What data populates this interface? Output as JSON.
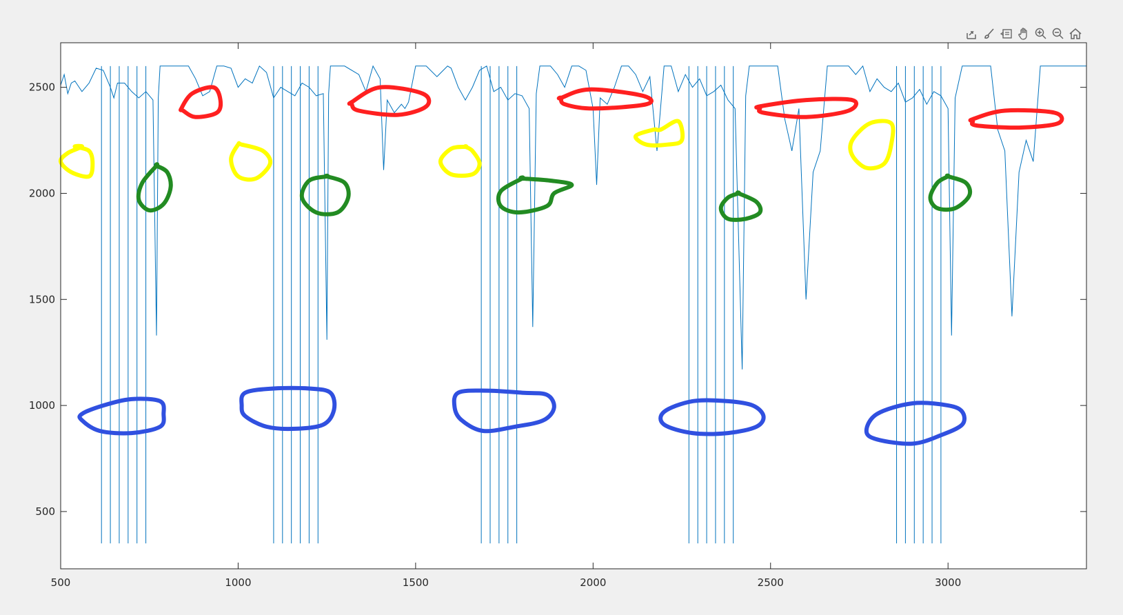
{
  "colors": {
    "line": "#0072bd",
    "red": "#ff2020",
    "yellow": "#ffff00",
    "green": "#228b22",
    "blue": "#3050e0",
    "axis": "#262626",
    "figure_bg": "#f0f0f0",
    "plot_bg": "#ffffff"
  },
  "toolbar": {
    "icons": [
      "export-icon",
      "brush-icon",
      "datatips-icon",
      "pan-icon",
      "zoom-in-icon",
      "zoom-out-icon",
      "home-icon"
    ]
  },
  "chart_data": {
    "type": "line",
    "title": "",
    "xlabel": "",
    "ylabel": "",
    "xlim": [
      500,
      3390
    ],
    "ylim": [
      230,
      2710
    ],
    "xticks": [
      500,
      1000,
      1500,
      2000,
      2500,
      3000
    ],
    "yticks": [
      500,
      1000,
      1500,
      2000,
      2500
    ],
    "xtick_labels": [
      "500",
      "1000",
      "1500",
      "2000",
      "2500",
      "3000"
    ],
    "ytick_labels": [
      "500",
      "1000",
      "1500",
      "2000",
      "2500"
    ],
    "grid": false,
    "legend": "none",
    "series": [
      {
        "x": [
          500,
          510,
          520,
          530,
          540,
          560,
          580,
          600,
          620,
          640,
          650,
          660,
          680,
          700,
          720,
          740,
          760,
          770,
          775,
          780,
          790,
          800,
          860,
          880,
          900,
          920,
          940,
          960,
          980,
          1000,
          1020,
          1040,
          1060,
          1080,
          1100,
          1120,
          1140,
          1160,
          1180,
          1200,
          1220,
          1240,
          1250,
          1255,
          1260,
          1270,
          1300,
          1340,
          1360,
          1380,
          1400,
          1410,
          1420,
          1440,
          1460,
          1470,
          1480,
          1500,
          1530,
          1560,
          1590,
          1600,
          1620,
          1640,
          1660,
          1680,
          1700,
          1720,
          1740,
          1760,
          1780,
          1800,
          1820,
          1830,
          1840,
          1850,
          1860,
          1870,
          1880,
          1900,
          1920,
          1940,
          1960,
          1980,
          2000,
          2010,
          2020,
          2040,
          2060,
          2080,
          2100,
          2120,
          2140,
          2160,
          2180,
          2200,
          2220,
          2240,
          2260,
          2280,
          2300,
          2320,
          2340,
          2360,
          2380,
          2400,
          2420,
          2430,
          2440,
          2450,
          2480,
          2520,
          2540,
          2560,
          2580,
          2600,
          2620,
          2640,
          2660,
          2680,
          2700,
          2720,
          2740,
          2760,
          2780,
          2800,
          2820,
          2840,
          2860,
          2880,
          2900,
          2920,
          2940,
          2960,
          2980,
          3000,
          3010,
          3020,
          3040,
          3060,
          3080,
          3100,
          3120,
          3140,
          3160,
          3180,
          3200,
          3220,
          3240,
          3260,
          3280,
          3300,
          3390
        ],
        "y": [
          2510,
          2560,
          2470,
          2520,
          2530,
          2480,
          2520,
          2590,
          2580,
          2500,
          2450,
          2520,
          2520,
          2480,
          2450,
          2480,
          2440,
          1330,
          2450,
          2600,
          2600,
          2600,
          2600,
          2540,
          2460,
          2480,
          2600,
          2600,
          2590,
          2500,
          2540,
          2520,
          2600,
          2570,
          2450,
          2500,
          2480,
          2460,
          2520,
          2500,
          2460,
          2470,
          1310,
          2470,
          2600,
          2600,
          2600,
          2560,
          2480,
          2600,
          2540,
          2110,
          2440,
          2380,
          2420,
          2400,
          2430,
          2600,
          2600,
          2550,
          2600,
          2590,
          2500,
          2440,
          2500,
          2580,
          2600,
          2480,
          2500,
          2440,
          2470,
          2460,
          2400,
          1370,
          2470,
          2600,
          2600,
          2600,
          2600,
          2560,
          2500,
          2600,
          2600,
          2580,
          2400,
          2040,
          2450,
          2420,
          2500,
          2600,
          2600,
          2560,
          2480,
          2550,
          2200,
          2600,
          2600,
          2480,
          2560,
          2500,
          2540,
          2460,
          2480,
          2510,
          2440,
          2400,
          1170,
          2460,
          2600,
          2600,
          2600,
          2600,
          2350,
          2200,
          2400,
          1500,
          2100,
          2200,
          2600,
          2600,
          2600,
          2600,
          2560,
          2600,
          2480,
          2540,
          2500,
          2480,
          2520,
          2430,
          2450,
          2490,
          2420,
          2480,
          2460,
          2400,
          1330,
          2450,
          2600,
          2600,
          2600,
          2600,
          2600,
          2300,
          2200,
          1420,
          2100,
          2250,
          2150,
          2600,
          2600,
          2600,
          2600
        ]
      }
    ],
    "spikes_to": 350,
    "spike_x": [
      615,
      640,
      665,
      690,
      715,
      740,
      1100,
      1125,
      1150,
      1175,
      1200,
      1225,
      1685,
      1710,
      1735,
      1760,
      1785,
      2270,
      2295,
      2320,
      2345,
      2370,
      2395,
      2855,
      2880,
      2905,
      2930,
      2955,
      2980
    ]
  },
  "annotations": {
    "red": [
      [
        [
          840,
          2400
        ],
        [
          870,
          2470
        ],
        [
          930,
          2500
        ],
        [
          950,
          2440
        ],
        [
          940,
          2380
        ],
        [
          880,
          2360
        ],
        [
          845,
          2390
        ]
      ],
      [
        [
          1320,
          2430
        ],
        [
          1400,
          2500
        ],
        [
          1520,
          2470
        ],
        [
          1530,
          2410
        ],
        [
          1450,
          2370
        ],
        [
          1340,
          2390
        ],
        [
          1320,
          2420
        ]
      ],
      [
        [
          1910,
          2450
        ],
        [
          1990,
          2490
        ],
        [
          2140,
          2460
        ],
        [
          2150,
          2420
        ],
        [
          2000,
          2400
        ],
        [
          1920,
          2420
        ],
        [
          1910,
          2450
        ]
      ],
      [
        [
          2470,
          2410
        ],
        [
          2600,
          2440
        ],
        [
          2730,
          2440
        ],
        [
          2720,
          2390
        ],
        [
          2600,
          2360
        ],
        [
          2480,
          2380
        ],
        [
          2470,
          2400
        ]
      ],
      [
        [
          3070,
          2350
        ],
        [
          3160,
          2390
        ],
        [
          3300,
          2380
        ],
        [
          3310,
          2330
        ],
        [
          3200,
          2310
        ],
        [
          3080,
          2320
        ],
        [
          3070,
          2340
        ]
      ]
    ],
    "yellow": [
      [
        [
          540,
          2220
        ],
        [
          580,
          2200
        ],
        [
          590,
          2140
        ],
        [
          580,
          2080
        ],
        [
          530,
          2100
        ],
        [
          500,
          2150
        ],
        [
          520,
          2190
        ],
        [
          560,
          2220
        ]
      ],
      [
        [
          1010,
          2230
        ],
        [
          1070,
          2200
        ],
        [
          1090,
          2140
        ],
        [
          1050,
          2070
        ],
        [
          1000,
          2080
        ],
        [
          980,
          2160
        ],
        [
          1000,
          2230
        ]
      ],
      [
        [
          1640,
          2220
        ],
        [
          1660,
          2200
        ],
        [
          1680,
          2140
        ],
        [
          1660,
          2090
        ],
        [
          1600,
          2090
        ],
        [
          1570,
          2150
        ],
        [
          1600,
          2210
        ],
        [
          1640,
          2220
        ]
      ],
      [
        [
          2190,
          2300
        ],
        [
          2240,
          2340
        ],
        [
          2250,
          2250
        ],
        [
          2210,
          2230
        ],
        [
          2150,
          2230
        ],
        [
          2120,
          2270
        ],
        [
          2170,
          2300
        ]
      ],
      [
        [
          2840,
          2330
        ],
        [
          2780,
          2330
        ],
        [
          2730,
          2250
        ],
        [
          2730,
          2180
        ],
        [
          2770,
          2120
        ],
        [
          2820,
          2140
        ],
        [
          2840,
          2230
        ]
      ]
    ],
    "green": [
      [
        [
          770,
          2130
        ],
        [
          800,
          2100
        ],
        [
          810,
          2030
        ],
        [
          790,
          1950
        ],
        [
          750,
          1920
        ],
        [
          720,
          1970
        ],
        [
          730,
          2050
        ],
        [
          770,
          2130
        ]
      ],
      [
        [
          1250,
          2080
        ],
        [
          1300,
          2050
        ],
        [
          1310,
          1980
        ],
        [
          1280,
          1910
        ],
        [
          1220,
          1910
        ],
        [
          1180,
          1980
        ],
        [
          1200,
          2060
        ],
        [
          1250,
          2080
        ]
      ],
      [
        [
          1800,
          2070
        ],
        [
          1880,
          2060
        ],
        [
          1940,
          2040
        ],
        [
          1890,
          2000
        ],
        [
          1870,
          1940
        ],
        [
          1790,
          1910
        ],
        [
          1740,
          1940
        ],
        [
          1740,
          2010
        ],
        [
          1800,
          2070
        ]
      ],
      [
        [
          2410,
          2000
        ],
        [
          2460,
          1960
        ],
        [
          2470,
          1910
        ],
        [
          2430,
          1880
        ],
        [
          2380,
          1880
        ],
        [
          2360,
          1930
        ],
        [
          2380,
          1980
        ],
        [
          2410,
          2000
        ]
      ],
      [
        [
          3000,
          2080
        ],
        [
          3050,
          2050
        ],
        [
          3060,
          1990
        ],
        [
          3020,
          1930
        ],
        [
          2970,
          1930
        ],
        [
          2950,
          1980
        ],
        [
          2970,
          2050
        ],
        [
          3000,
          2080
        ]
      ]
    ],
    "blue": [
      [
        [
          560,
          960
        ],
        [
          620,
          1000
        ],
        [
          700,
          1030
        ],
        [
          780,
          1020
        ],
        [
          790,
          960
        ],
        [
          780,
          900
        ],
        [
          700,
          870
        ],
        [
          610,
          880
        ],
        [
          560,
          930
        ]
      ],
      [
        [
          1020,
          1060
        ],
        [
          1100,
          1080
        ],
        [
          1200,
          1080
        ],
        [
          1260,
          1060
        ],
        [
          1270,
          980
        ],
        [
          1240,
          910
        ],
        [
          1160,
          890
        ],
        [
          1080,
          900
        ],
        [
          1020,
          950
        ],
        [
          1010,
          1000
        ]
      ],
      [
        [
          1620,
          1060
        ],
        [
          1700,
          1070
        ],
        [
          1800,
          1060
        ],
        [
          1870,
          1050
        ],
        [
          1890,
          990
        ],
        [
          1860,
          930
        ],
        [
          1780,
          900
        ],
        [
          1690,
          880
        ],
        [
          1630,
          930
        ],
        [
          1610,
          990
        ]
      ],
      [
        [
          2200,
          970
        ],
        [
          2280,
          1020
        ],
        [
          2380,
          1020
        ],
        [
          2450,
          1000
        ],
        [
          2480,
          950
        ],
        [
          2460,
          900
        ],
        [
          2380,
          870
        ],
        [
          2280,
          870
        ],
        [
          2200,
          910
        ]
      ],
      [
        [
          2770,
          880
        ],
        [
          2800,
          960
        ],
        [
          2900,
          1010
        ],
        [
          3000,
          1000
        ],
        [
          3040,
          970
        ],
        [
          3040,
          910
        ],
        [
          2980,
          860
        ],
        [
          2900,
          820
        ],
        [
          2800,
          840
        ]
      ]
    ]
  }
}
